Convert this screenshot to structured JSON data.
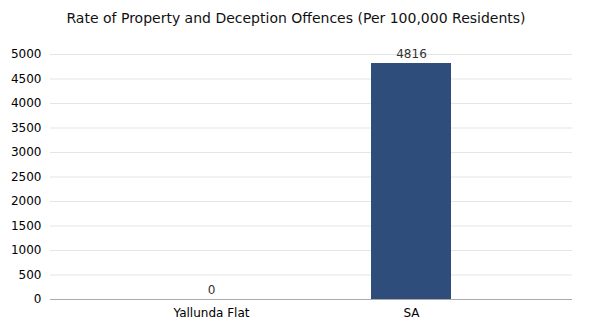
{
  "chart_data": {
    "type": "bar",
    "title": "Rate of Property and Deception Offences (Per 100,000 Residents)",
    "categories": [
      "Yallunda Flat",
      "SA"
    ],
    "values": [
      0,
      4816
    ],
    "color": "#2e4d7b",
    "ylim": [
      0,
      5000
    ],
    "yticks": [
      0,
      500,
      1000,
      1500,
      2000,
      2500,
      3000,
      3500,
      4000,
      4500,
      5000
    ],
    "grid": true,
    "data_labels": true
  }
}
